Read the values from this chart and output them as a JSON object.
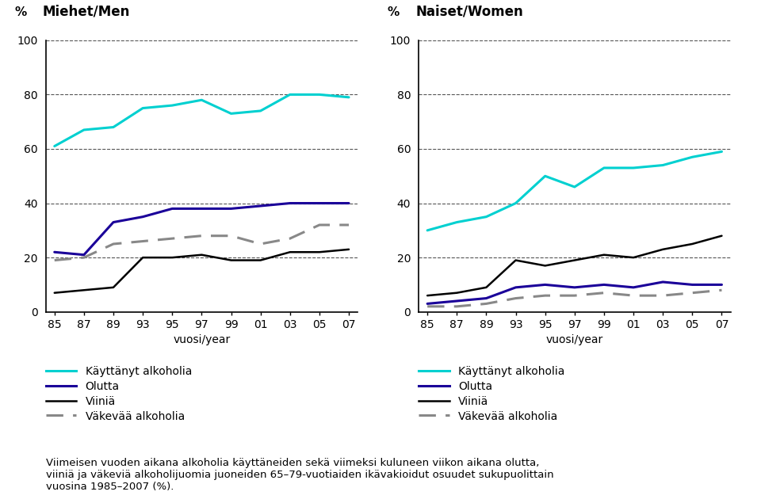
{
  "years_labels": [
    "85",
    "87",
    "89",
    "93",
    "95",
    "97",
    "99",
    "01",
    "03",
    "05",
    "07"
  ],
  "men": {
    "kayttanyt": [
      61,
      67,
      68,
      75,
      76,
      78,
      73,
      74,
      80,
      80,
      79
    ],
    "olutta": [
      22,
      21,
      33,
      35,
      38,
      38,
      38,
      39,
      40,
      40,
      40
    ],
    "viinia": [
      7,
      8,
      9,
      20,
      20,
      21,
      19,
      19,
      22,
      22,
      23
    ],
    "vakevaa": [
      19,
      20,
      25,
      26,
      27,
      28,
      28,
      25,
      27,
      32,
      32
    ]
  },
  "women": {
    "kayttanyt": [
      30,
      33,
      35,
      40,
      50,
      46,
      53,
      53,
      54,
      57,
      59
    ],
    "olutta": [
      3,
      4,
      5,
      9,
      10,
      9,
      10,
      9,
      11,
      10,
      10
    ],
    "viinia": [
      6,
      7,
      9,
      19,
      17,
      19,
      21,
      20,
      23,
      25,
      28
    ],
    "vakevaa": [
      2,
      2,
      3,
      5,
      6,
      6,
      7,
      6,
      6,
      7,
      8
    ]
  },
  "title_men": "Miehet/Men",
  "title_women": "Naiset/Women",
  "ylabel": "%",
  "xlabel": "vuosi/year",
  "ylim": [
    0,
    100
  ],
  "yticks": [
    0,
    20,
    40,
    60,
    80,
    100
  ],
  "colors": {
    "kayttanyt": "#00d0d0",
    "olutta": "#1a0099",
    "viinia": "#000000",
    "vakevaa": "#888888"
  },
  "legend_labels": [
    "Käyttänyt alkoholia",
    "Olutta",
    "Viiniä",
    "Väkevää alkoholia"
  ],
  "bottom_text": "Viimeisen vuoden aikana alkoholia käyttäneiden sekä viimeksi kuluneen viikon aikana olutta,\nviiniä ja väkeviä alkoholijuomia juoneiden 65–79-vuotiaiden ikävakioidut osuudet sukupuolittain\nvuosina 1985–2007 (%)."
}
